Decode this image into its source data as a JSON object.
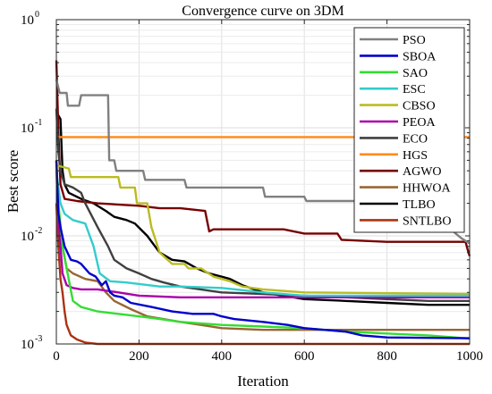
{
  "chart_data": {
    "type": "line",
    "title": "Convergence curve on 3DM",
    "xlabel": "Iteration",
    "ylabel": "Best score",
    "y_scale": "log",
    "xlim": [
      0,
      1000
    ],
    "ylim": [
      0.001,
      1
    ],
    "x_ticks": [
      "0",
      "200",
      "400",
      "600",
      "800",
      "1000"
    ],
    "y_ticks": [
      {
        "base": "10",
        "exp": "0"
      },
      {
        "base": "10",
        "exp": "-1"
      },
      {
        "base": "10",
        "exp": "-2"
      },
      {
        "base": "10",
        "exp": "-3"
      }
    ],
    "grid": true,
    "legend_position": "top-right",
    "series": [
      {
        "name": "PSO",
        "color": "#808080",
        "points": [
          [
            0,
            0.28
          ],
          [
            8,
            0.21
          ],
          [
            25,
            0.21
          ],
          [
            28,
            0.16
          ],
          [
            55,
            0.16
          ],
          [
            60,
            0.2
          ],
          [
            125,
            0.2
          ],
          [
            128,
            0.05
          ],
          [
            140,
            0.05
          ],
          [
            145,
            0.04
          ],
          [
            210,
            0.04
          ],
          [
            215,
            0.033
          ],
          [
            310,
            0.033
          ],
          [
            315,
            0.028
          ],
          [
            500,
            0.028
          ],
          [
            505,
            0.023
          ],
          [
            600,
            0.023
          ],
          [
            605,
            0.021
          ],
          [
            810,
            0.021
          ],
          [
            820,
            0.017
          ],
          [
            900,
            0.017
          ],
          [
            940,
            0.016
          ],
          [
            960,
            0.011
          ],
          [
            980,
            0.0095
          ],
          [
            1000,
            0.0085
          ]
        ]
      },
      {
        "name": "SBOA",
        "color": "#0000cc",
        "points": [
          [
            0,
            0.05
          ],
          [
            5,
            0.016
          ],
          [
            10,
            0.012
          ],
          [
            20,
            0.008
          ],
          [
            35,
            0.006
          ],
          [
            50,
            0.0058
          ],
          [
            60,
            0.0055
          ],
          [
            80,
            0.0045
          ],
          [
            95,
            0.0042
          ],
          [
            110,
            0.0035
          ],
          [
            120,
            0.0038
          ],
          [
            130,
            0.003
          ],
          [
            140,
            0.0028
          ],
          [
            160,
            0.0027
          ],
          [
            180,
            0.0024
          ],
          [
            230,
            0.0022
          ],
          [
            280,
            0.002
          ],
          [
            330,
            0.0019
          ],
          [
            380,
            0.0019
          ],
          [
            400,
            0.0018
          ],
          [
            430,
            0.0017
          ],
          [
            500,
            0.0016
          ],
          [
            560,
            0.0015
          ],
          [
            600,
            0.0014
          ],
          [
            700,
            0.0013
          ],
          [
            740,
            0.0012
          ],
          [
            800,
            0.00115
          ],
          [
            1000,
            0.00113
          ]
        ]
      },
      {
        "name": "SAO",
        "color": "#33dd33",
        "points": [
          [
            0,
            0.045
          ],
          [
            5,
            0.02
          ],
          [
            15,
            0.008
          ],
          [
            25,
            0.005
          ],
          [
            40,
            0.0025
          ],
          [
            60,
            0.0022
          ],
          [
            100,
            0.002
          ],
          [
            150,
            0.0019
          ],
          [
            200,
            0.0018
          ],
          [
            250,
            0.0017
          ],
          [
            300,
            0.0016
          ],
          [
            400,
            0.0015
          ],
          [
            500,
            0.00145
          ],
          [
            600,
            0.0014
          ],
          [
            700,
            0.0013
          ],
          [
            800,
            0.00125
          ],
          [
            900,
            0.0012
          ],
          [
            1000,
            0.00112
          ]
        ]
      },
      {
        "name": "ESC",
        "color": "#33cccc",
        "points": [
          [
            0,
            0.04
          ],
          [
            10,
            0.02
          ],
          [
            20,
            0.016
          ],
          [
            40,
            0.014
          ],
          [
            70,
            0.013
          ],
          [
            90,
            0.008
          ],
          [
            105,
            0.0045
          ],
          [
            130,
            0.0038
          ],
          [
            170,
            0.0037
          ],
          [
            250,
            0.0034
          ],
          [
            300,
            0.0034
          ],
          [
            400,
            0.0033
          ],
          [
            500,
            0.003
          ],
          [
            600,
            0.0028
          ],
          [
            1000,
            0.0028
          ]
        ]
      },
      {
        "name": "CBSO",
        "color": "#bbbb22",
        "points": [
          [
            0,
            0.045
          ],
          [
            30,
            0.042
          ],
          [
            35,
            0.035
          ],
          [
            150,
            0.035
          ],
          [
            155,
            0.028
          ],
          [
            190,
            0.028
          ],
          [
            195,
            0.02
          ],
          [
            220,
            0.02
          ],
          [
            230,
            0.012
          ],
          [
            250,
            0.007
          ],
          [
            280,
            0.0055
          ],
          [
            310,
            0.0055
          ],
          [
            320,
            0.005
          ],
          [
            350,
            0.005
          ],
          [
            380,
            0.0042
          ],
          [
            420,
            0.0038
          ],
          [
            450,
            0.0034
          ],
          [
            500,
            0.0032
          ],
          [
            600,
            0.003
          ],
          [
            1000,
            0.0029
          ]
        ]
      },
      {
        "name": "PEOA",
        "color": "#aa00aa",
        "points": [
          [
            0,
            0.05
          ],
          [
            8,
            0.01
          ],
          [
            15,
            0.0045
          ],
          [
            25,
            0.0035
          ],
          [
            40,
            0.0033
          ],
          [
            60,
            0.0032
          ],
          [
            100,
            0.0032
          ],
          [
            150,
            0.003
          ],
          [
            200,
            0.0028
          ],
          [
            300,
            0.0027
          ],
          [
            500,
            0.0027
          ],
          [
            700,
            0.0027
          ],
          [
            1000,
            0.0027
          ]
        ]
      },
      {
        "name": "ECO",
        "color": "#404040",
        "points": [
          [
            0,
            0.15
          ],
          [
            5,
            0.06
          ],
          [
            10,
            0.04
          ],
          [
            20,
            0.03
          ],
          [
            40,
            0.028
          ],
          [
            60,
            0.025
          ],
          [
            70,
            0.02
          ],
          [
            100,
            0.012
          ],
          [
            125,
            0.008
          ],
          [
            140,
            0.006
          ],
          [
            170,
            0.005
          ],
          [
            200,
            0.0045
          ],
          [
            230,
            0.004
          ],
          [
            260,
            0.0037
          ],
          [
            300,
            0.0034
          ],
          [
            400,
            0.003
          ],
          [
            500,
            0.0029
          ],
          [
            600,
            0.0028
          ],
          [
            700,
            0.0027
          ],
          [
            800,
            0.0026
          ],
          [
            900,
            0.0025
          ],
          [
            1000,
            0.0025
          ]
        ]
      },
      {
        "name": "HGS",
        "color": "#ff8c1a",
        "points": [
          [
            0,
            0.082
          ],
          [
            1000,
            0.082
          ]
        ]
      },
      {
        "name": "AGWO",
        "color": "#770000",
        "points": [
          [
            0,
            0.42
          ],
          [
            5,
            0.09
          ],
          [
            10,
            0.03
          ],
          [
            20,
            0.022
          ],
          [
            50,
            0.021
          ],
          [
            100,
            0.02
          ],
          [
            200,
            0.019
          ],
          [
            250,
            0.018
          ],
          [
            300,
            0.018
          ],
          [
            360,
            0.017
          ],
          [
            370,
            0.011
          ],
          [
            380,
            0.0115
          ],
          [
            550,
            0.0115
          ],
          [
            600,
            0.0105
          ],
          [
            680,
            0.0105
          ],
          [
            690,
            0.0092
          ],
          [
            800,
            0.0088
          ],
          [
            900,
            0.0088
          ],
          [
            990,
            0.0088
          ],
          [
            995,
            0.0075
          ],
          [
            1000,
            0.0065
          ]
        ]
      },
      {
        "name": "HHWOA",
        "color": "#996633",
        "points": [
          [
            0,
            0.04
          ],
          [
            5,
            0.015
          ],
          [
            15,
            0.008
          ],
          [
            25,
            0.005
          ],
          [
            40,
            0.0045
          ],
          [
            70,
            0.004
          ],
          [
            100,
            0.0038
          ],
          [
            120,
            0.003
          ],
          [
            140,
            0.0025
          ],
          [
            180,
            0.0021
          ],
          [
            220,
            0.0018
          ],
          [
            300,
            0.0016
          ],
          [
            350,
            0.0015
          ],
          [
            400,
            0.0014
          ],
          [
            500,
            0.00135
          ],
          [
            600,
            0.00135
          ],
          [
            800,
            0.00135
          ],
          [
            1000,
            0.00135
          ]
        ]
      },
      {
        "name": "TLBO",
        "color": "#000000",
        "points": [
          [
            0,
            0.14
          ],
          [
            10,
            0.12
          ],
          [
            15,
            0.04
          ],
          [
            20,
            0.03
          ],
          [
            30,
            0.025
          ],
          [
            60,
            0.022
          ],
          [
            90,
            0.02
          ],
          [
            120,
            0.017
          ],
          [
            140,
            0.015
          ],
          [
            170,
            0.014
          ],
          [
            190,
            0.013
          ],
          [
            220,
            0.01
          ],
          [
            250,
            0.007
          ],
          [
            280,
            0.006
          ],
          [
            310,
            0.0058
          ],
          [
            340,
            0.005
          ],
          [
            370,
            0.0045
          ],
          [
            400,
            0.0042
          ],
          [
            420,
            0.004
          ],
          [
            450,
            0.0035
          ],
          [
            500,
            0.003
          ],
          [
            600,
            0.0026
          ],
          [
            700,
            0.0025
          ],
          [
            800,
            0.0024
          ],
          [
            900,
            0.0023
          ],
          [
            1000,
            0.0023
          ]
        ]
      },
      {
        "name": "SNTLBO",
        "color": "#aa3311",
        "points": [
          [
            0,
            0.02
          ],
          [
            5,
            0.008
          ],
          [
            10,
            0.004
          ],
          [
            15,
            0.003
          ],
          [
            20,
            0.002
          ],
          [
            25,
            0.0015
          ],
          [
            35,
            0.0012
          ],
          [
            50,
            0.0011
          ],
          [
            70,
            0.00103
          ],
          [
            100,
            0.001
          ],
          [
            1000,
            0.001
          ]
        ]
      }
    ]
  }
}
